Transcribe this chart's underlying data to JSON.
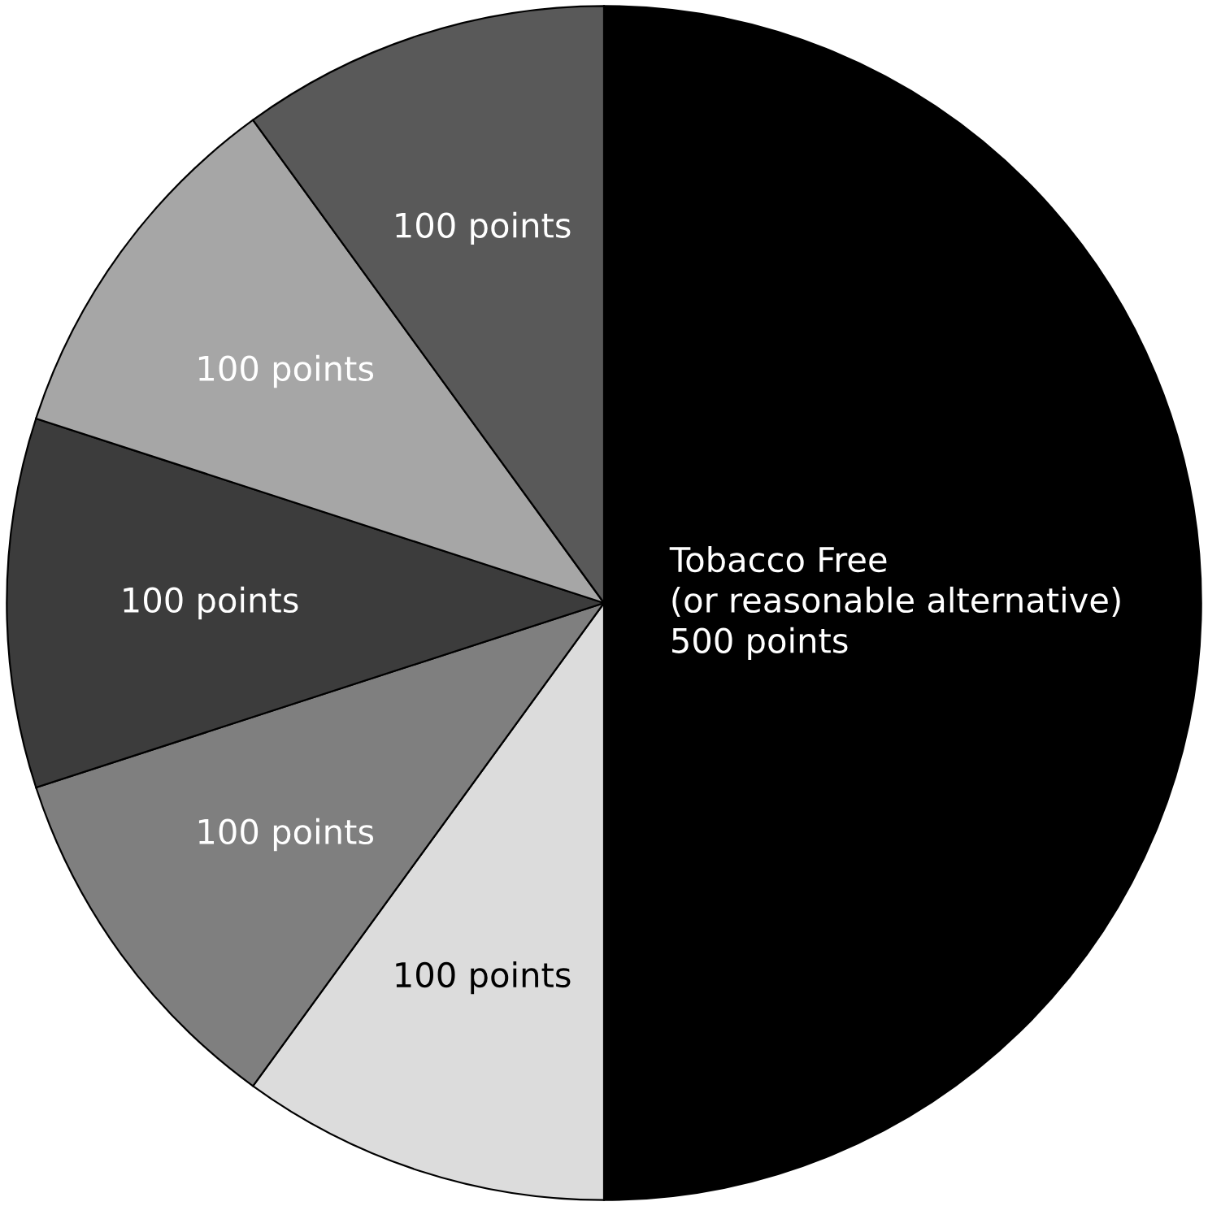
{
  "chart_data": {
    "type": "pie",
    "categories": [
      "Tobacco Free\n(or reasonable alternative)",
      null,
      null,
      null,
      null,
      null
    ],
    "values": [
      500,
      100,
      100,
      100,
      100,
      100
    ],
    "value_labels": [
      "500 points",
      "100 points",
      "100 points",
      "100 points",
      "100 points",
      "100 points"
    ],
    "colors": [
      "#000000",
      "#dcdcdc",
      "#7f7f7f",
      "#3c3c3c",
      "#a6a6a6",
      "#595959"
    ]
  }
}
